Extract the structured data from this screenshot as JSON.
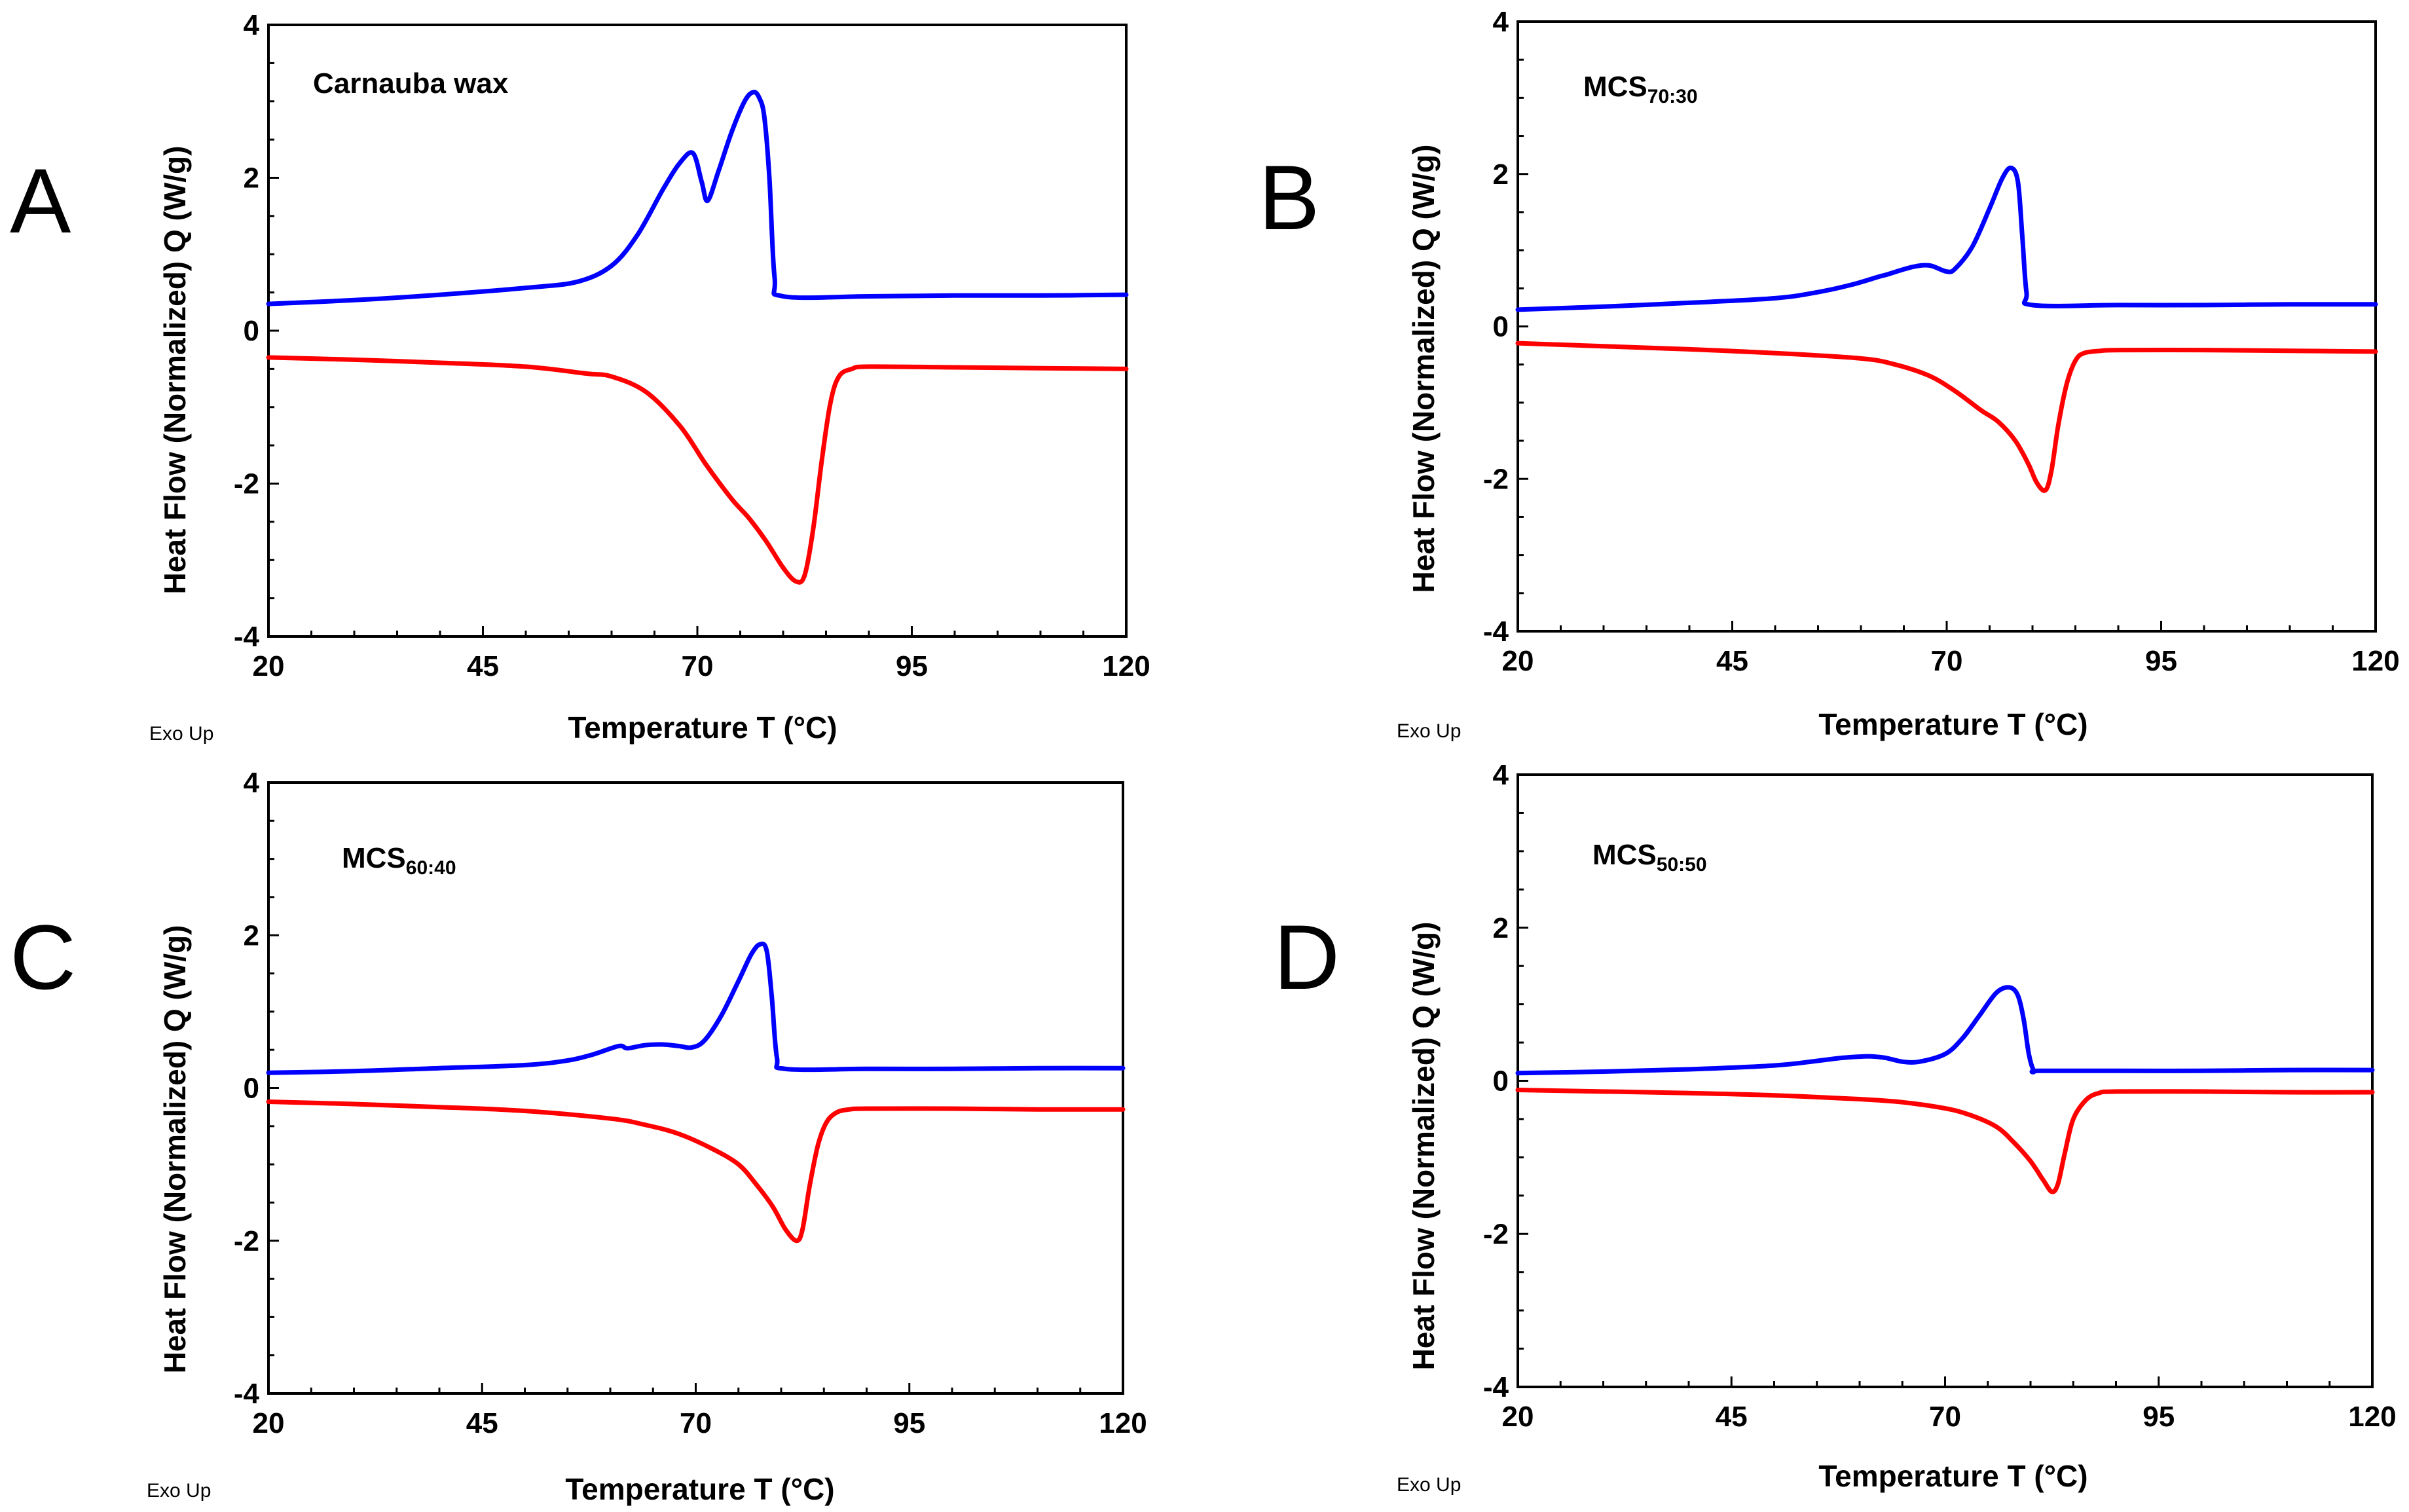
{
  "figure": {
    "panels": [
      {
        "letter": "A",
        "sample_main": "Carnauba wax",
        "sample_sub": ""
      },
      {
        "letter": "B",
        "sample_main": "MCS",
        "sample_sub": "70:30"
      },
      {
        "letter": "C",
        "sample_main": "MCS",
        "sample_sub": "60:40"
      },
      {
        "letter": "D",
        "sample_main": "MCS",
        "sample_sub": "50:50"
      }
    ]
  },
  "chart_data": [
    {
      "type": "line",
      "panel": "A",
      "title": "Carnauba wax",
      "xlabel": "Temperature T (°C)",
      "ylabel": "Heat Flow (Normalized) Q (W/g)",
      "corner_note": "Exo Up",
      "xlim": [
        20,
        120
      ],
      "ylim": [
        -4,
        4
      ],
      "x_ticks": [
        20,
        45,
        70,
        95,
        120
      ],
      "y_ticks": [
        -4,
        -2,
        0,
        2,
        4
      ],
      "series": [
        {
          "color": "#0000ff",
          "x": [
            20,
            30,
            40,
            50,
            56,
            60,
            63,
            66,
            68,
            69.5,
            70.5,
            71.2,
            72.5,
            74,
            75.5,
            76.5,
            77.2,
            77.8,
            78.4,
            79,
            80,
            90,
            100,
            110,
            120
          ],
          "y": [
            0.35,
            0.4,
            0.47,
            0.56,
            0.64,
            0.85,
            1.25,
            1.85,
            2.2,
            2.32,
            1.95,
            1.7,
            2.1,
            2.6,
            3.0,
            3.12,
            3.05,
            2.8,
            2.0,
            0.7,
            0.45,
            0.45,
            0.46,
            0.46,
            0.47
          ]
        },
        {
          "color": "#ff0000",
          "x": [
            20,
            30,
            40,
            50,
            57,
            60,
            64,
            68,
            71,
            74,
            76,
            78,
            80,
            81.5,
            82.5,
            83.5,
            84.5,
            85.5,
            86.5,
            88,
            90,
            100,
            110,
            120
          ],
          "y": [
            -0.35,
            -0.38,
            -0.42,
            -0.47,
            -0.56,
            -0.6,
            -0.8,
            -1.25,
            -1.75,
            -2.2,
            -2.45,
            -2.75,
            -3.1,
            -3.28,
            -3.2,
            -2.6,
            -1.7,
            -0.95,
            -0.6,
            -0.5,
            -0.47,
            -0.48,
            -0.49,
            -0.5
          ]
        }
      ]
    },
    {
      "type": "line",
      "panel": "B",
      "title": "MCS70:30",
      "xlabel": "Temperature T (°C)",
      "ylabel": "Heat Flow (Normalized) Q (W/g)",
      "corner_note": "Exo Up",
      "xlim": [
        20,
        120
      ],
      "ylim": [
        -4,
        4
      ],
      "x_ticks": [
        20,
        45,
        70,
        95,
        120
      ],
      "y_ticks": [
        -4,
        -2,
        0,
        2,
        4
      ],
      "series": [
        {
          "color": "#0000ff",
          "x": [
            20,
            30,
            40,
            50,
            55,
            59,
            62,
            63,
            66,
            68,
            70,
            71,
            73,
            75,
            76.5,
            77.5,
            78.3,
            78.8,
            79.3,
            80,
            90,
            100,
            110,
            120
          ],
          "y": [
            0.22,
            0.26,
            0.31,
            0.37,
            0.45,
            0.55,
            0.65,
            0.68,
            0.78,
            0.8,
            0.72,
            0.76,
            1.05,
            1.55,
            1.95,
            2.08,
            1.9,
            1.2,
            0.45,
            0.28,
            0.28,
            0.28,
            0.29,
            0.29
          ]
        },
        {
          "color": "#ff0000",
          "x": [
            20,
            30,
            40,
            50,
            60,
            64,
            68,
            71,
            74,
            76,
            78,
            79.5,
            80.5,
            81.5,
            82.2,
            83,
            84,
            85,
            86,
            88,
            90,
            100,
            110,
            120
          ],
          "y": [
            -0.22,
            -0.26,
            -0.3,
            -0.35,
            -0.42,
            -0.5,
            -0.65,
            -0.85,
            -1.1,
            -1.25,
            -1.5,
            -1.8,
            -2.05,
            -2.15,
            -1.9,
            -1.3,
            -0.75,
            -0.45,
            -0.35,
            -0.32,
            -0.31,
            -0.31,
            -0.32,
            -0.33
          ]
        }
      ]
    },
    {
      "type": "line",
      "panel": "C",
      "title": "MCS60:40",
      "xlabel": "Temperature T (°C)",
      "ylabel": "Heat Flow (Normalized) Q (W/g)",
      "corner_note": "Exo Up",
      "xlim": [
        20,
        120
      ],
      "ylim": [
        -4,
        4
      ],
      "x_ticks": [
        20,
        45,
        70,
        95,
        120
      ],
      "y_ticks": [
        -4,
        -2,
        0,
        2,
        4
      ],
      "series": [
        {
          "color": "#0000ff",
          "x": [
            20,
            30,
            40,
            50,
            55,
            58,
            61,
            62,
            64,
            66,
            68,
            69.5,
            71,
            73,
            75,
            76.5,
            77.5,
            78.3,
            78.9,
            79.5,
            80.5,
            90,
            100,
            110,
            120
          ],
          "y": [
            0.2,
            0.22,
            0.26,
            0.3,
            0.36,
            0.44,
            0.55,
            0.52,
            0.56,
            0.57,
            0.55,
            0.53,
            0.62,
            0.95,
            1.4,
            1.75,
            1.88,
            1.8,
            1.2,
            0.4,
            0.25,
            0.25,
            0.25,
            0.26,
            0.26
          ]
        },
        {
          "color": "#ff0000",
          "x": [
            20,
            30,
            40,
            50,
            60,
            64,
            68,
            72,
            75,
            77,
            79,
            80.5,
            81.8,
            82.5,
            83.3,
            84.3,
            85.3,
            86.5,
            88,
            90,
            100,
            110,
            120
          ],
          "y": [
            -0.18,
            -0.21,
            -0.25,
            -0.3,
            -0.4,
            -0.48,
            -0.6,
            -0.8,
            -1.0,
            -1.25,
            -1.55,
            -1.85,
            -2.0,
            -1.85,
            -1.3,
            -0.75,
            -0.45,
            -0.32,
            -0.28,
            -0.27,
            -0.27,
            -0.28,
            -0.28
          ]
        }
      ]
    },
    {
      "type": "line",
      "panel": "D",
      "title": "MCS50:50",
      "xlabel": "Temperature T (°C)",
      "ylabel": "Heat Flow (Normalized) Q (W/g)",
      "corner_note": "Exo Up",
      "xlim": [
        20,
        120
      ],
      "ylim": [
        -4,
        4
      ],
      "x_ticks": [
        20,
        45,
        70,
        95,
        120
      ],
      "y_ticks": [
        -4,
        -2,
        0,
        2,
        4
      ],
      "series": [
        {
          "color": "#0000ff",
          "x": [
            20,
            30,
            40,
            50,
            55,
            58,
            61,
            63,
            65,
            67,
            70,
            72,
            74,
            76,
            77.5,
            78.5,
            79.2,
            79.8,
            80.4,
            81,
            90,
            100,
            110,
            120
          ],
          "y": [
            0.1,
            0.12,
            0.15,
            0.2,
            0.26,
            0.3,
            0.32,
            0.3,
            0.25,
            0.25,
            0.35,
            0.55,
            0.85,
            1.15,
            1.22,
            1.12,
            0.8,
            0.35,
            0.13,
            0.13,
            0.13,
            0.13,
            0.14,
            0.14
          ]
        },
        {
          "color": "#ff0000",
          "x": [
            20,
            30,
            40,
            50,
            60,
            65,
            70,
            73,
            76,
            78,
            80,
            81.5,
            82.5,
            83.2,
            84,
            85,
            86.5,
            88,
            90,
            100,
            110,
            120
          ],
          "y": [
            -0.12,
            -0.14,
            -0.16,
            -0.19,
            -0.24,
            -0.28,
            -0.36,
            -0.45,
            -0.6,
            -0.8,
            -1.05,
            -1.3,
            -1.45,
            -1.35,
            -0.95,
            -0.5,
            -0.25,
            -0.16,
            -0.14,
            -0.14,
            -0.15,
            -0.15
          ]
        }
      ]
    }
  ]
}
